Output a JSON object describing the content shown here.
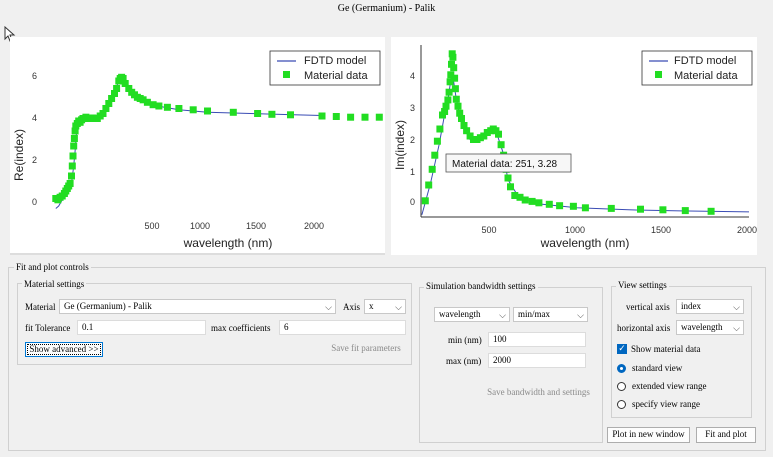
{
  "window_title": "Ge (Germanium) - Palik",
  "colors": {
    "model_line": "#3a4cb4",
    "material_points": "#22dd22",
    "tooltip_border": "#555555"
  },
  "plot_left": {
    "ylabel": "Re(index)",
    "xlabel": "wavelength (nm)",
    "xticks": [
      "500",
      "1000",
      "1500",
      "2000"
    ],
    "yticks": [
      "0",
      "2",
      "4",
      "6"
    ],
    "legend": {
      "model": "FDTD model",
      "data": "Material data"
    }
  },
  "plot_right": {
    "ylabel": "Im(index)",
    "xlabel": "wavelength (nm)",
    "xticks": [
      "500",
      "1000",
      "1500",
      "2000"
    ],
    "yticks": [
      "0",
      "1",
      "2",
      "3",
      "4"
    ],
    "legend": {
      "model": "FDTD model",
      "data": "Material data"
    },
    "tooltip": "Material data: 251,  3.28"
  },
  "chart_data": [
    {
      "type": "scatter",
      "xlabel": "wavelength (nm)",
      "ylabel": "Re(index)",
      "xlim": [
        -180,
        2440
      ],
      "ylim": [
        -1.2,
        7.2
      ],
      "series": [
        {
          "name": "FDTD model",
          "type": "line",
          "points": [
            [
              140,
              0.5
            ],
            [
              160,
              0.6
            ],
            [
              200,
              1.0
            ],
            [
              230,
              1.2
            ],
            [
              250,
              1.5
            ],
            [
              265,
              2.2
            ],
            [
              275,
              2.8
            ],
            [
              285,
              3.6
            ],
            [
              300,
              3.9
            ],
            [
              330,
              4.0
            ],
            [
              360,
              4.1
            ],
            [
              400,
              4.1
            ],
            [
              450,
              4.2
            ],
            [
              500,
              4.5
            ],
            [
              540,
              5.0
            ],
            [
              580,
              5.6
            ],
            [
              610,
              5.5
            ],
            [
              650,
              5.3
            ],
            [
              700,
              5.0
            ],
            [
              760,
              4.8
            ],
            [
              850,
              4.6
            ],
            [
              1000,
              4.45
            ],
            [
              1200,
              4.35
            ],
            [
              1500,
              4.3
            ],
            [
              1800,
              4.25
            ],
            [
              2000,
              4.22
            ]
          ]
        },
        {
          "name": "Material data",
          "type": "scatter",
          "points": [
            [
              140,
              0.9
            ],
            [
              155,
              0.85
            ],
            [
              170,
              0.95
            ],
            [
              185,
              1.0
            ],
            [
              200,
              1.1
            ],
            [
              210,
              1.2
            ],
            [
              220,
              1.3
            ],
            [
              230,
              1.4
            ],
            [
              240,
              1.5
            ],
            [
              250,
              1.8
            ],
            [
              255,
              2.2
            ],
            [
              260,
              2.6
            ],
            [
              265,
              3.0
            ],
            [
              270,
              3.3
            ],
            [
              275,
              3.6
            ],
            [
              280,
              3.8
            ],
            [
              290,
              3.9
            ],
            [
              300,
              4.0
            ],
            [
              310,
              3.95
            ],
            [
              320,
              4.05
            ],
            [
              330,
              4.1
            ],
            [
              340,
              4.1
            ],
            [
              350,
              4.15
            ],
            [
              365,
              4.1
            ],
            [
              380,
              4.1
            ],
            [
              400,
              4.12
            ],
            [
              415,
              4.1
            ],
            [
              430,
              4.1
            ],
            [
              450,
              4.2
            ],
            [
              470,
              4.3
            ],
            [
              490,
              4.5
            ],
            [
              510,
              4.7
            ],
            [
              530,
              4.9
            ],
            [
              550,
              5.1
            ],
            [
              565,
              5.3
            ],
            [
              580,
              5.6
            ],
            [
              590,
              5.7
            ],
            [
              600,
              5.75
            ],
            [
              610,
              5.7
            ],
            [
              625,
              5.5
            ],
            [
              650,
              5.3
            ],
            [
              670,
              5.15
            ],
            [
              690,
              5.05
            ],
            [
              710,
              4.95
            ],
            [
              730,
              4.9
            ],
            [
              750,
              4.85
            ],
            [
              780,
              4.75
            ],
            [
              820,
              4.65
            ],
            [
              860,
              4.6
            ],
            [
              920,
              4.55
            ],
            [
              1000,
              4.5
            ],
            [
              1100,
              4.45
            ],
            [
              1200,
              4.4
            ],
            [
              1380,
              4.35
            ],
            [
              1550,
              4.3
            ],
            [
              1650,
              4.27
            ],
            [
              1780,
              4.25
            ],
            [
              2000,
              4.2
            ],
            [
              2100,
              4.18
            ],
            [
              2200,
              4.15
            ],
            [
              2300,
              4.15
            ],
            [
              2400,
              4.15
            ]
          ]
        }
      ]
    },
    {
      "type": "scatter",
      "xlabel": "wavelength (nm)",
      "ylabel": "Im(index)",
      "xlim": [
        95,
        2000
      ],
      "ylim": [
        -0.35,
        4.85
      ],
      "series": [
        {
          "name": "FDTD model",
          "type": "line",
          "points": [
            [
              100,
              0.0
            ],
            [
              150,
              0.9
            ],
            [
              200,
              2.0
            ],
            [
              230,
              2.8
            ],
            [
              251,
              3.28
            ],
            [
              270,
              3.9
            ],
            [
              285,
              3.8
            ],
            [
              300,
              3.3
            ],
            [
              330,
              2.6
            ],
            [
              380,
              2.15
            ],
            [
              430,
              2.2
            ],
            [
              470,
              2.3
            ],
            [
              510,
              2.4
            ],
            [
              540,
              2.25
            ],
            [
              570,
              1.8
            ],
            [
              600,
              1.0
            ],
            [
              650,
              0.6
            ],
            [
              700,
              0.45
            ],
            [
              800,
              0.3
            ],
            [
              1000,
              0.2
            ],
            [
              1300,
              0.14
            ],
            [
              1600,
              0.11
            ],
            [
              2000,
              0.08
            ]
          ]
        },
        {
          "name": "Material data",
          "type": "scatter",
          "points": [
            [
              120,
              0.4
            ],
            [
              140,
              0.85
            ],
            [
              160,
              1.3
            ],
            [
              175,
              1.7
            ],
            [
              190,
              2.1
            ],
            [
              205,
              2.45
            ],
            [
              220,
              2.85
            ],
            [
              232,
              2.95
            ],
            [
              240,
              3.1
            ],
            [
              251,
              3.28
            ],
            [
              258,
              3.5
            ],
            [
              264,
              3.8
            ],
            [
              268,
              4.0
            ],
            [
              272,
              4.3
            ],
            [
              276,
              4.6
            ],
            [
              280,
              4.5
            ],
            [
              285,
              4.2
            ],
            [
              290,
              3.9
            ],
            [
              295,
              3.6
            ],
            [
              300,
              3.3
            ],
            [
              310,
              3.1
            ],
            [
              320,
              2.9
            ],
            [
              330,
              2.75
            ],
            [
              345,
              2.55
            ],
            [
              360,
              2.4
            ],
            [
              380,
              2.25
            ],
            [
              400,
              2.15
            ],
            [
              420,
              2.15
            ],
            [
              440,
              2.2
            ],
            [
              460,
              2.25
            ],
            [
              480,
              2.35
            ],
            [
              500,
              2.4
            ],
            [
              515,
              2.45
            ],
            [
              530,
              2.4
            ],
            [
              545,
              2.3
            ],
            [
              560,
              2.0
            ],
            [
              575,
              1.7
            ],
            [
              590,
              1.3
            ],
            [
              600,
              1.05
            ],
            [
              615,
              0.8
            ],
            [
              640,
              0.55
            ],
            [
              670,
              0.5
            ],
            [
              700,
              0.42
            ],
            [
              740,
              0.38
            ],
            [
              780,
              0.34
            ],
            [
              840,
              0.3
            ],
            [
              900,
              0.26
            ],
            [
              980,
              0.24
            ],
            [
              1050,
              0.2
            ],
            [
              1200,
              0.18
            ],
            [
              1370,
              0.16
            ],
            [
              1500,
              0.14
            ],
            [
              1630,
              0.12
            ],
            [
              1780,
              0.1
            ]
          ]
        }
      ]
    }
  ],
  "controls": {
    "panel_title": "Fit and plot controls",
    "material_settings": {
      "title": "Material settings",
      "material_label": "Material",
      "material_value": "Ge (Germanium) - Palik",
      "axis_label": "Axis",
      "axis_value": "x",
      "fit_tolerance_label": "fit Tolerance",
      "fit_tolerance_value": "0.1",
      "max_coeff_label": "max coefficients",
      "max_coeff_value": "6",
      "show_advanced": "Show advanced >>",
      "save_fit": "Save fit parameters"
    },
    "simulation": {
      "title": "Simulation bandwidth settings",
      "unit_select": "wavelength",
      "range_select": "min/max",
      "min_label": "min (nm)",
      "min_value": "100",
      "max_label": "max (nm)",
      "max_value": "2000",
      "save_button": "Save bandwidth and settings"
    },
    "view": {
      "title": "View settings",
      "vertical_label": "vertical axis",
      "vertical_value": "index",
      "horizontal_label": "horizontal axis",
      "horizontal_value": "wavelength",
      "show_material": "Show material data",
      "radio_standard": "standard view",
      "radio_extended": "extended view range",
      "radio_specify": "specify view range"
    },
    "plot_new_window": "Plot in new window",
    "fit_and_plot": "Fit and plot"
  }
}
